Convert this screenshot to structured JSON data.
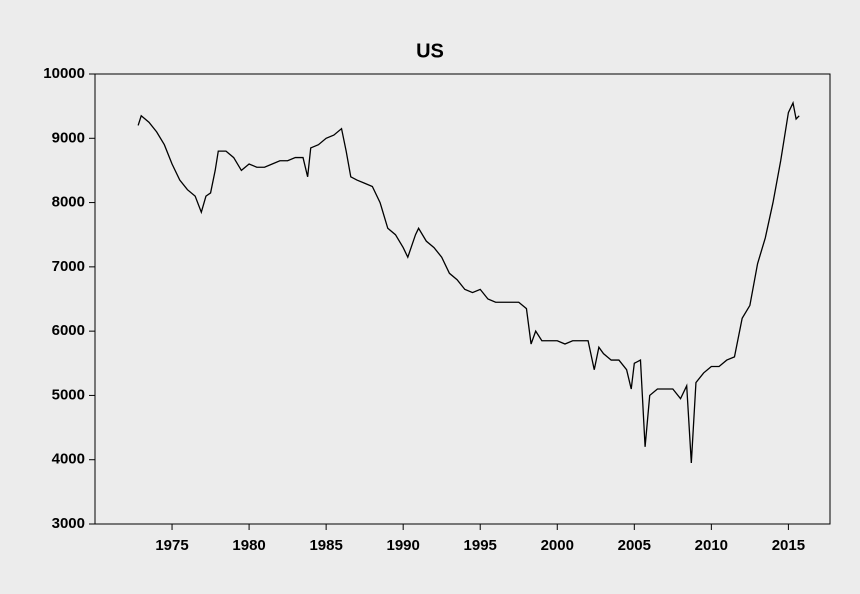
{
  "chart_data": {
    "type": "line",
    "title": "US",
    "x": [
      1972.8,
      1973,
      1973.5,
      1974,
      1974.5,
      1975,
      1975.5,
      1976,
      1976.5,
      1976.9,
      1977.2,
      1977.5,
      1977.8,
      1978,
      1978.5,
      1979,
      1979.5,
      1980,
      1980.5,
      1981,
      1981.5,
      1982,
      1982.5,
      1983,
      1983.5,
      1983.8,
      1984,
      1984.5,
      1985,
      1985.5,
      1986,
      1986.3,
      1986.6,
      1987,
      1987.5,
      1988,
      1988.5,
      1989,
      1989.5,
      1990,
      1990.3,
      1990.8,
      1991,
      1991.5,
      1992,
      1992.5,
      1993,
      1993.5,
      1994,
      1994.5,
      1995,
      1995.5,
      1996,
      1996.5,
      1997,
      1997.5,
      1998,
      1998.3,
      1998.6,
      1999,
      1999.5,
      2000,
      2000.5,
      2001,
      2001.5,
      2002,
      2002.4,
      2002.7,
      2003,
      2003.5,
      2004,
      2004.5,
      2004.8,
      2005,
      2005.4,
      2005.7,
      2006,
      2006.5,
      2007,
      2007.5,
      2008,
      2008.4,
      2008.7,
      2009,
      2009.5,
      2010,
      2010.5,
      2011,
      2011.5,
      2012,
      2012.5,
      2013,
      2013.5,
      2014,
      2014.5,
      2015,
      2015.3,
      2015.5,
      2015.7
    ],
    "series": [
      {
        "color": "#000000",
        "values": [
          9200,
          9350,
          9250,
          9100,
          8900,
          8600,
          8350,
          8200,
          8100,
          7850,
          8100,
          8150,
          8500,
          8800,
          8800,
          8700,
          8500,
          8600,
          8550,
          8550,
          8600,
          8650,
          8650,
          8700,
          8700,
          8400,
          8850,
          8900,
          9000,
          9050,
          9150,
          8800,
          8400,
          8350,
          8300,
          8250,
          8000,
          7600,
          7500,
          7300,
          7150,
          7500,
          7600,
          7400,
          7300,
          7150,
          6900,
          6800,
          6650,
          6600,
          6650,
          6500,
          6450,
          6450,
          6450,
          6450,
          6350,
          5800,
          6000,
          5850,
          5850,
          5850,
          5800,
          5850,
          5850,
          5850,
          5400,
          5750,
          5650,
          5550,
          5550,
          5400,
          5100,
          5500,
          5550,
          4200,
          5000,
          5100,
          5100,
          5100,
          4950,
          5150,
          3950,
          5200,
          5350,
          5450,
          5450,
          5550,
          5600,
          6200,
          6400,
          7050,
          7450,
          8000,
          8650,
          9400,
          9550,
          9300,
          9350
        ]
      }
    ],
    "xlim": [
      1970,
      2017.7
    ],
    "xticks": [
      1975,
      1980,
      1985,
      1990,
      1995,
      2000,
      2005,
      2010,
      2015
    ],
    "ylim": [
      3000,
      10000
    ],
    "yticks": [
      3000,
      4000,
      5000,
      6000,
      7000,
      8000,
      9000,
      10000
    ]
  }
}
